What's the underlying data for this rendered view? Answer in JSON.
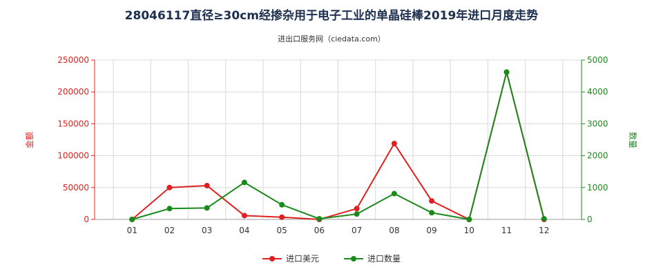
{
  "chart_data": {
    "type": "line",
    "title": "28046117直径≥30cm经掺杂用于电子工业的单晶硅棒2019年进口月度走势",
    "subtitle": "进出口服务网（ciedata.com）",
    "categories": [
      "01",
      "02",
      "03",
      "04",
      "05",
      "06",
      "07",
      "08",
      "09",
      "10",
      "11",
      "12"
    ],
    "y_left": {
      "label": "金额",
      "ylim": [
        0,
        250000
      ],
      "ticks": [
        0,
        50000,
        100000,
        150000,
        200000,
        250000
      ],
      "color": "#e02020"
    },
    "y_right": {
      "label": "数量",
      "ylim": [
        0,
        5000
      ],
      "ticks": [
        0,
        1000,
        2000,
        3000,
        4000,
        5000
      ],
      "color": "#1a8a1a"
    },
    "grid": true,
    "legend_position": "bottom",
    "series": [
      {
        "name": "进口美元",
        "axis": "left",
        "color": "#e02020",
        "values": [
          0,
          50000,
          53000,
          6000,
          3500,
          0,
          17000,
          119000,
          29000,
          0,
          231000,
          0
        ]
      },
      {
        "name": "进口数量",
        "axis": "right",
        "color": "#1a8a1a",
        "values": [
          0,
          340,
          360,
          1160,
          460,
          20,
          170,
          810,
          210,
          0,
          4620,
          20
        ]
      }
    ]
  }
}
